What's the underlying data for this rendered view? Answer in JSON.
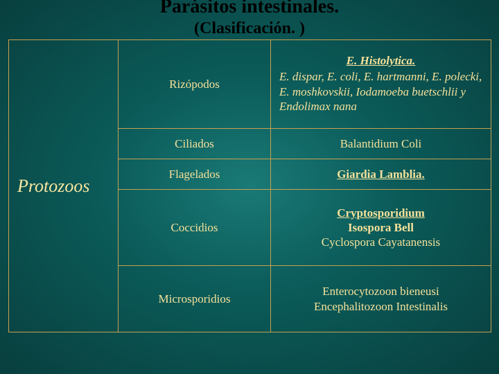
{
  "title": {
    "line1": "Parásitos intestinales.",
    "line2": "(Clasificación. )"
  },
  "table": {
    "leftHeader": "Protozoos",
    "rows": [
      {
        "mid": "Rizópodos",
        "emph": "E. Histolytica.",
        "rest": "E. dispar, E. coli, E. hartmanni, E. polecki, E. moshkovskii, Iodamoeba buetschlii y Endolimax nana"
      },
      {
        "mid": "Ciliados",
        "right": "Balantidium Coli"
      },
      {
        "mid": "Flagelados",
        "right": "Giardia Lamblia."
      },
      {
        "mid": "Coccidios",
        "right_lines": [
          "Cryptosporidium",
          "Isospora Bell",
          "Cyclospora Cayatanensis"
        ]
      },
      {
        "mid": "Microsporidios",
        "right_lines": [
          "Enterocytozoon bieneusi",
          "Encephalitozoon Intestinalis"
        ]
      }
    ]
  },
  "styles": {
    "accent_border": "#c8a050",
    "text_color": "#f5e19a",
    "background": "#0b5c5a"
  }
}
